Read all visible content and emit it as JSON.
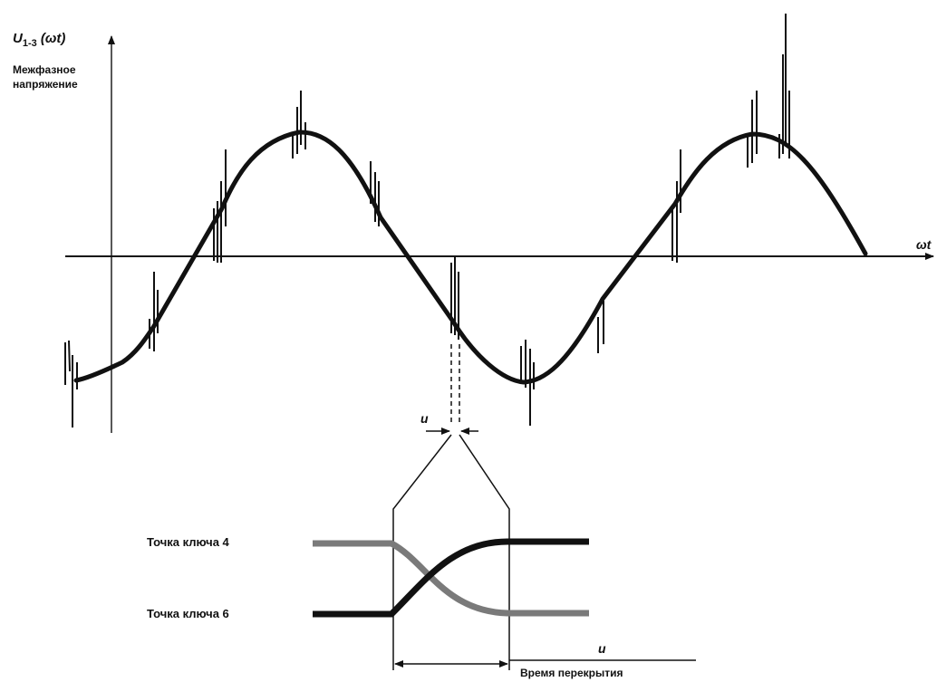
{
  "y_axis": {
    "symbol": "U",
    "subscript": "1-3",
    "argument": "(ωt)",
    "caption_line1": "Межфазное",
    "caption_line2": "напряжение"
  },
  "x_axis": {
    "label": "ωt"
  },
  "overlap": {
    "label": "u",
    "time_label": "u",
    "time_caption": "Время перекрытия"
  },
  "keys": [
    {
      "label": "Точка ключа 4",
      "color": "#7a7a7a"
    },
    {
      "label": "Точка ключа 6",
      "color": "#111111"
    }
  ],
  "colors": {
    "ink": "#111111",
    "grey_trace": "#7a7a7a"
  }
}
